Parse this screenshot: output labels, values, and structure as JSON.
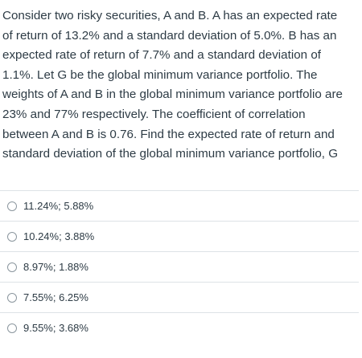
{
  "question": {
    "lines": [
      "Consider two risky securities, A and B. A has an expected rate",
      "of return of 13.2% and a standard deviation of 5.0%. B has an",
      "expected rate of return of 7.7% and a standard deviation of",
      "1.1%. Let G be the global minimum variance portfolio. The",
      "weights of A and B in the global minimum variance portfolio are",
      "23% and 77% respectively. The coefficient of correlation",
      "between A and B is 0.76.  Find the expected rate of return and",
      "standard deviation of the global minimum variance portfolio, G"
    ]
  },
  "answers": [
    {
      "label": "11.24%; 5.88%",
      "selected": false
    },
    {
      "label": "10.24%; 3.88%",
      "selected": false
    },
    {
      "label": "8.97%; 1.88%",
      "selected": false
    },
    {
      "label": "7.55%; 6.25%",
      "selected": false
    },
    {
      "label": "9.55%; 3.68%",
      "selected": false
    }
  ]
}
